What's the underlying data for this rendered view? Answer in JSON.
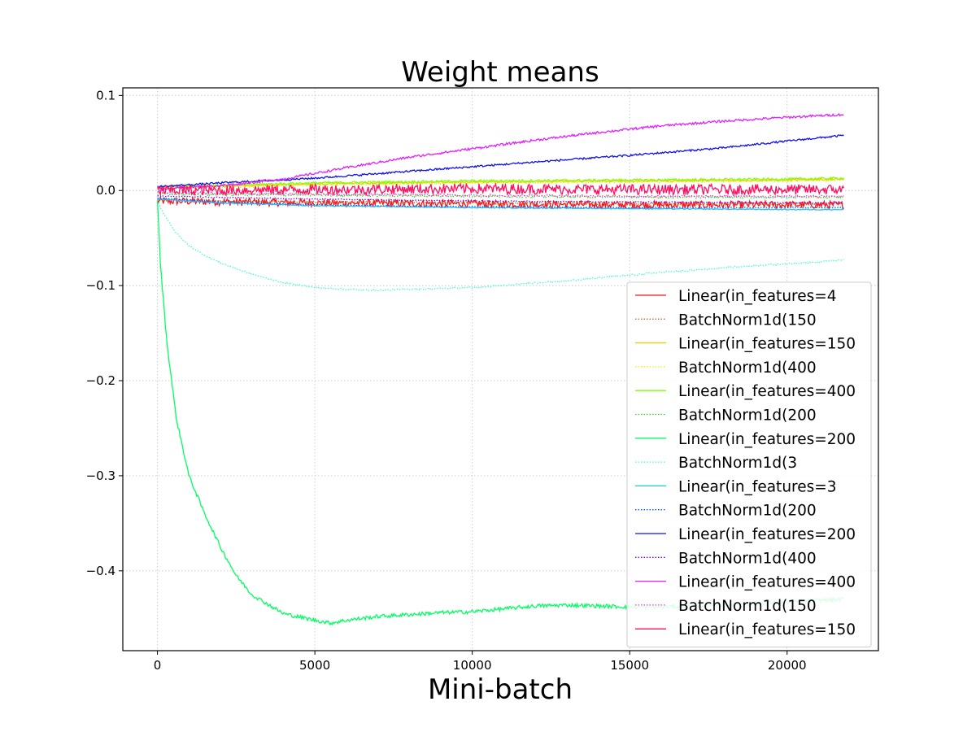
{
  "chart_data": {
    "type": "line",
    "title": "Weight means",
    "xlabel": "Mini-batch",
    "ylabel": "",
    "xlim": [
      -1100,
      22900
    ],
    "ylim": [
      -0.484,
      0.108
    ],
    "xticks": [
      0,
      5000,
      10000,
      15000,
      20000
    ],
    "xtick_labels": [
      "0",
      "5000",
      "10000",
      "15000",
      "20000"
    ],
    "yticks": [
      0.1,
      0.0,
      -0.1,
      -0.2,
      -0.3,
      -0.4
    ],
    "ytick_labels": [
      "0.1",
      "0.0",
      "−0.1",
      "−0.2",
      "−0.3",
      "−0.4"
    ],
    "grid": true,
    "legend_position": "lower-right",
    "series": [
      {
        "name": "Linear(in_features=4",
        "color": "#ff1010",
        "style": "solid",
        "noise": 0.004,
        "x": [
          0,
          5000,
          10000,
          15000,
          20000,
          21800
        ],
        "y": [
          -0.011,
          -0.013,
          -0.014,
          -0.015,
          -0.015,
          -0.015
        ]
      },
      {
        "name": "BatchNorm1d(150",
        "color": "#cc6622",
        "style": "dotted",
        "noise": 0.001,
        "x": [
          0,
          5000,
          10000,
          15000,
          20000,
          21800
        ],
        "y": [
          -0.01,
          -0.012,
          -0.013,
          -0.014,
          -0.014,
          -0.014
        ]
      },
      {
        "name": "Linear(in_features=150",
        "color": "#f2cc00",
        "style": "solid",
        "noise": 0.001,
        "x": [
          0,
          5000,
          10000,
          15000,
          20000,
          21800
        ],
        "y": [
          0.003,
          0.007,
          0.009,
          0.01,
          0.011,
          0.012
        ]
      },
      {
        "name": "BatchNorm1d(400",
        "color": "#e8f000",
        "style": "dotted",
        "noise": 0.001,
        "x": [
          0,
          5000,
          10000,
          15000,
          20000,
          21800
        ],
        "y": [
          0.002,
          0.006,
          0.008,
          0.009,
          0.01,
          0.011
        ]
      },
      {
        "name": "Linear(in_features=400",
        "color": "#80ff00",
        "style": "solid",
        "noise": 0.0012,
        "x": [
          0,
          5000,
          10000,
          15000,
          20000,
          21800
        ],
        "y": [
          0.004,
          0.008,
          0.01,
          0.011,
          0.012,
          0.013
        ]
      },
      {
        "name": "BatchNorm1d(200",
        "color": "#22dd22",
        "style": "dotted",
        "noise": 0.001,
        "x": [
          0,
          5000,
          10000,
          15000,
          20000,
          21800
        ],
        "y": [
          -0.004,
          -0.005,
          -0.006,
          -0.007,
          -0.007,
          -0.007
        ]
      },
      {
        "name": "Linear(in_features=200",
        "color": "#00ff60",
        "style": "solid",
        "noise": 0.002,
        "x": [
          0,
          100,
          300,
          600,
          1000,
          1500,
          2000,
          2500,
          3000,
          4000,
          5000,
          5500,
          6000,
          7000,
          8000,
          9000,
          10000,
          11000,
          12000,
          13000,
          14000,
          15000,
          16000,
          17000,
          18000,
          19000,
          20000,
          21000,
          21800
        ],
        "y": [
          -0.01,
          -0.08,
          -0.16,
          -0.24,
          -0.3,
          -0.34,
          -0.375,
          -0.405,
          -0.425,
          -0.445,
          -0.452,
          -0.455,
          -0.452,
          -0.448,
          -0.446,
          -0.444,
          -0.443,
          -0.44,
          -0.437,
          -0.436,
          -0.437,
          -0.438,
          -0.438,
          -0.437,
          -0.436,
          -0.434,
          -0.433,
          -0.431,
          -0.43
        ]
      },
      {
        "name": "BatchNorm1d(3",
        "color": "#40ffcc",
        "style": "dotted",
        "noise": 0.0008,
        "x": [
          0,
          100,
          300,
          600,
          1000,
          1500,
          2000,
          2500,
          3000,
          4000,
          5000,
          6000,
          7000,
          8000,
          9000,
          10000,
          11000,
          12000,
          13000,
          14000,
          15000,
          16000,
          17000,
          18000,
          19000,
          20000,
          21000,
          21800
        ],
        "y": [
          -0.01,
          -0.018,
          -0.03,
          -0.045,
          -0.058,
          -0.068,
          -0.076,
          -0.082,
          -0.088,
          -0.097,
          -0.102,
          -0.104,
          -0.105,
          -0.104,
          -0.103,
          -0.102,
          -0.1,
          -0.097,
          -0.095,
          -0.092,
          -0.089,
          -0.086,
          -0.084,
          -0.081,
          -0.079,
          -0.077,
          -0.075,
          -0.073
        ]
      },
      {
        "name": "Linear(in_features=3",
        "color": "#20c0ff",
        "style": "solid",
        "noise": 0.0005,
        "x": [
          0,
          2000,
          5000,
          10000,
          15000,
          20000,
          21800
        ],
        "y": [
          -0.009,
          -0.013,
          -0.016,
          -0.018,
          -0.019,
          -0.02,
          -0.02
        ]
      },
      {
        "name": "BatchNorm1d(200",
        "color": "#0060ff",
        "style": "dotted",
        "noise": 0.0005,
        "x": [
          0,
          2000,
          5000,
          10000,
          15000,
          20000,
          21800
        ],
        "y": [
          -0.008,
          -0.012,
          -0.015,
          -0.017,
          -0.018,
          -0.018,
          -0.018
        ]
      },
      {
        "name": "Linear(in_features=200",
        "color": "#1010f0",
        "style": "solid",
        "noise": 0.001,
        "x": [
          0,
          2000,
          5000,
          10000,
          12000,
          15000,
          18000,
          20000,
          21800
        ],
        "y": [
          0.004,
          0.008,
          0.013,
          0.025,
          0.03,
          0.037,
          0.045,
          0.052,
          0.058
        ]
      },
      {
        "name": "BatchNorm1d(400",
        "color": "#8000ff",
        "style": "dotted",
        "noise": 0.0005,
        "x": [
          0,
          5000,
          10000,
          15000,
          20000,
          21800
        ],
        "y": [
          -0.006,
          -0.009,
          -0.011,
          -0.012,
          -0.013,
          -0.013
        ]
      },
      {
        "name": "Linear(in_features=400",
        "color": "#e020ff",
        "style": "solid",
        "noise": 0.0012,
        "x": [
          0,
          2000,
          4000,
          6000,
          8000,
          10000,
          12000,
          14000,
          16000,
          18000,
          20000,
          21800
        ],
        "y": [
          0.002,
          0.005,
          0.012,
          0.024,
          0.035,
          0.044,
          0.053,
          0.061,
          0.068,
          0.073,
          0.077,
          0.08
        ]
      },
      {
        "name": "BatchNorm1d(150",
        "color": "#ff30d0",
        "style": "dotted",
        "noise": 0.001,
        "x": [
          0,
          5000,
          10000,
          15000,
          20000,
          21800
        ],
        "y": [
          -0.002,
          -0.004,
          -0.005,
          -0.006,
          -0.006,
          -0.006
        ]
      },
      {
        "name": "Linear(in_features=150",
        "color": "#ff1060",
        "style": "solid",
        "noise": 0.0055,
        "x": [
          0,
          5000,
          10000,
          15000,
          20000,
          21800
        ],
        "y": [
          0.0,
          0.001,
          0.002,
          0.001,
          0.001,
          0.001
        ]
      }
    ]
  }
}
